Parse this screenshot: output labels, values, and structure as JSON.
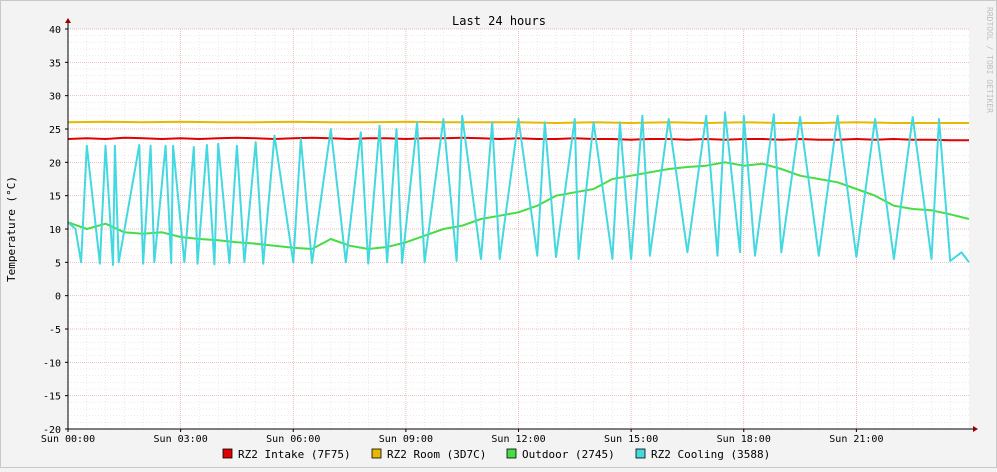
{
  "chart_data": {
    "type": "line",
    "title": "Last 24 hours",
    "ylabel": "Temperature (°C)",
    "xlabel": "",
    "watermark": "RRDTOOL / TOBI OETIKER",
    "ylim": [
      -20,
      40
    ],
    "yticks": [
      40,
      35,
      30,
      25,
      20,
      15,
      10,
      5,
      0,
      -5,
      -10,
      -15,
      -20
    ],
    "xlim": [
      0,
      24
    ],
    "xticks": [
      {
        "x": 0,
        "label": "Sun 00:00"
      },
      {
        "x": 3,
        "label": "Sun 03:00"
      },
      {
        "x": 6,
        "label": "Sun 06:00"
      },
      {
        "x": 9,
        "label": "Sun 09:00"
      },
      {
        "x": 12,
        "label": "Sun 12:00"
      },
      {
        "x": 15,
        "label": "Sun 15:00"
      },
      {
        "x": 18,
        "label": "Sun 18:00"
      },
      {
        "x": 21,
        "label": "Sun 21:00"
      }
    ],
    "grid": true,
    "legend_position": "bottom",
    "series": [
      {
        "name": "RZ2 Intake (7F75)",
        "color": "#e00000",
        "x": [
          0,
          0.5,
          1,
          1.5,
          2,
          2.5,
          3,
          3.5,
          4,
          4.5,
          5,
          5.5,
          6,
          6.5,
          7,
          7.5,
          8,
          8.5,
          9,
          9.5,
          10,
          10.5,
          11,
          11.5,
          12,
          12.5,
          13,
          13.5,
          14,
          14.5,
          15,
          15.5,
          16,
          16.5,
          17,
          17.5,
          18,
          18.5,
          19,
          19.5,
          20,
          20.5,
          21,
          21.5,
          22,
          22.5,
          23,
          23.5,
          24
        ],
        "values": [
          23.5,
          23.6,
          23.5,
          23.7,
          23.6,
          23.5,
          23.6,
          23.5,
          23.6,
          23.7,
          23.6,
          23.5,
          23.6,
          23.7,
          23.6,
          23.5,
          23.6,
          23.6,
          23.5,
          23.6,
          23.6,
          23.7,
          23.6,
          23.5,
          23.6,
          23.5,
          23.5,
          23.6,
          23.5,
          23.5,
          23.4,
          23.5,
          23.5,
          23.4,
          23.5,
          23.4,
          23.5,
          23.5,
          23.4,
          23.5,
          23.4,
          23.4,
          23.5,
          23.4,
          23.5,
          23.4,
          23.4,
          23.3,
          23.3
        ]
      },
      {
        "name": "RZ2 Room (3D7C)",
        "color": "#e8b800",
        "x": [
          0,
          1,
          2,
          3,
          4,
          5,
          6,
          7,
          8,
          9,
          10,
          11,
          12,
          13,
          14,
          15,
          16,
          17,
          18,
          19,
          20,
          21,
          22,
          23,
          24
        ],
        "values": [
          26.0,
          26.1,
          26.0,
          26.1,
          26.0,
          26.0,
          26.1,
          26.0,
          26.0,
          26.1,
          26.0,
          26.0,
          26.0,
          25.9,
          26.0,
          25.9,
          26.0,
          25.9,
          26.0,
          25.9,
          25.9,
          26.0,
          25.9,
          25.9,
          25.9
        ]
      },
      {
        "name": "Outdoor (2745)",
        "color": "#44dd44",
        "x": [
          0,
          0.5,
          1,
          1.5,
          2,
          2.5,
          3,
          3.5,
          4,
          4.5,
          5,
          5.5,
          6,
          6.5,
          7,
          7.5,
          8,
          8.5,
          9,
          9.5,
          10,
          10.5,
          11,
          11.5,
          12,
          12.5,
          13,
          13.5,
          14,
          14.5,
          15,
          15.5,
          16,
          16.5,
          17,
          17.5,
          18,
          18.5,
          19,
          19.5,
          20,
          20.5,
          21,
          21.5,
          22,
          22.5,
          23,
          23.5,
          24
        ],
        "values": [
          11.0,
          10.0,
          10.8,
          9.5,
          9.3,
          9.5,
          8.8,
          8.5,
          8.3,
          8.0,
          7.8,
          7.5,
          7.2,
          7.0,
          8.5,
          7.5,
          7.0,
          7.3,
          8.0,
          9.0,
          10.0,
          10.5,
          11.5,
          12.0,
          12.5,
          13.5,
          15.0,
          15.5,
          16.0,
          17.5,
          18.0,
          18.5,
          19.0,
          19.3,
          19.5,
          20.0,
          19.5,
          19.8,
          19.0,
          18.0,
          17.5,
          17.0,
          16.0,
          15.0,
          13.5,
          13.0,
          12.8,
          12.2,
          11.5
        ]
      },
      {
        "name": "RZ2 Cooling (3588)",
        "color": "#44d8e0",
        "x": [
          0,
          0.2,
          0.35,
          0.5,
          0.85,
          1.0,
          1.2,
          1.25,
          1.35,
          1.9,
          2.0,
          2.2,
          2.3,
          2.6,
          2.75,
          2.8,
          3.1,
          3.35,
          3.45,
          3.7,
          3.9,
          4.0,
          4.3,
          4.5,
          4.7,
          5.0,
          5.2,
          5.5,
          6.0,
          6.2,
          6.5,
          7.0,
          7.4,
          7.8,
          8.0,
          8.3,
          8.5,
          8.75,
          8.9,
          9.3,
          9.5,
          10.0,
          10.35,
          10.5,
          11.0,
          11.3,
          11.5,
          12.0,
          12.5,
          12.7,
          13.0,
          13.5,
          13.6,
          14.0,
          14.5,
          14.7,
          15.0,
          15.3,
          15.5,
          16.0,
          16.5,
          17.0,
          17.3,
          17.5,
          17.9,
          18.0,
          18.3,
          18.8,
          19.0,
          19.5,
          20.0,
          20.5,
          21.0,
          21.5,
          22.0,
          22.5,
          23.0,
          23.2,
          23.5,
          23.8,
          24
        ],
        "values": [
          11.0,
          10.0,
          5.0,
          22.5,
          4.8,
          22.5,
          4.6,
          22.5,
          5.0,
          22.6,
          4.8,
          22.5,
          5.0,
          22.5,
          4.9,
          22.5,
          5.0,
          22.3,
          4.8,
          22.6,
          4.7,
          22.8,
          4.9,
          22.5,
          5.0,
          23.0,
          4.8,
          24.0,
          5.0,
          23.5,
          4.9,
          25.0,
          5.0,
          24.5,
          4.8,
          25.5,
          5.0,
          25.0,
          4.9,
          26.0,
          5.0,
          26.5,
          5.2,
          27.0,
          5.5,
          26.0,
          5.5,
          26.5,
          6.0,
          26.0,
          5.8,
          26.5,
          5.5,
          26.0,
          5.5,
          26.0,
          5.5,
          27.0,
          6.0,
          26.5,
          6.5,
          27.0,
          6.0,
          27.5,
          6.5,
          27.0,
          6.0,
          27.2,
          6.5,
          26.8,
          6.0,
          27.0,
          5.8,
          26.5,
          5.5,
          26.8,
          5.5,
          26.5,
          5.2,
          6.5,
          5.0
        ]
      }
    ]
  }
}
